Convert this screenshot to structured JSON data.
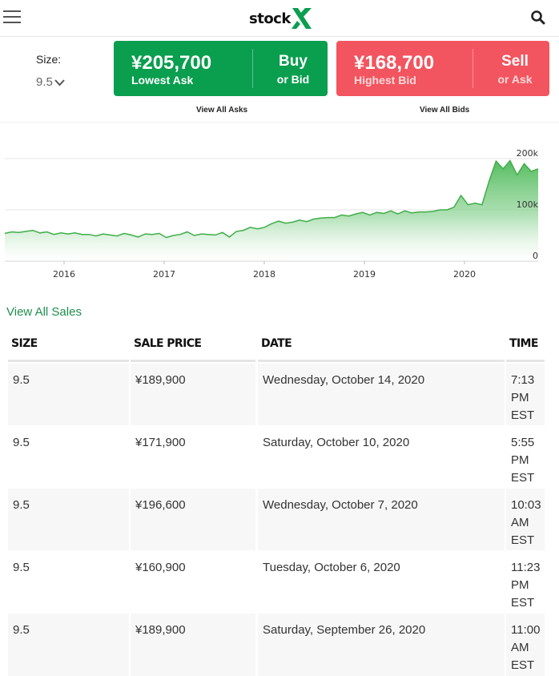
{
  "header": {
    "logo_text": "stock",
    "menu_icon": "hamburger-menu-icon",
    "search_icon": "search-icon",
    "brand_color": "#0a9e4f"
  },
  "size": {
    "label": "Size:",
    "value": "9.5"
  },
  "ask": {
    "price": "¥205,700",
    "sub": "Lowest Ask",
    "action": "Buy",
    "action_sub": "or Bid",
    "color": "#0a9e4f",
    "view_all": "View All Asks"
  },
  "bid": {
    "price": "¥168,700",
    "sub": "Highest Bid",
    "action": "Sell",
    "action_sub": "or Ask",
    "color": "#f2555f",
    "view_all": "View All Bids"
  },
  "chart_data": {
    "type": "area",
    "x_ticks": [
      "2016",
      "2017",
      "2018",
      "2019",
      "2020"
    ],
    "y_ticks": [
      "200k",
      "100k",
      "0"
    ],
    "ylim": [
      0,
      200000
    ],
    "grid": true,
    "series": [
      {
        "values": [
          54000,
          57000,
          56000,
          58000,
          60000,
          55000,
          57000,
          52000,
          55000,
          53000,
          55000,
          52000,
          52000,
          49000,
          53000,
          51000,
          49000,
          54000,
          51000,
          47000,
          53000,
          52000,
          54000,
          46000,
          50000,
          52000,
          57000,
          50000,
          53000,
          52000,
          51000,
          56000,
          47000,
          58000,
          60000,
          66000,
          63000,
          66000,
          73000,
          78000,
          74000,
          76000,
          80000,
          77000,
          82000,
          84000,
          85000,
          85000,
          90000,
          88000,
          92000,
          95000,
          90000,
          95000,
          93000,
          98000,
          92000,
          98000,
          94000,
          96000,
          96000,
          97000,
          100000,
          100000,
          105000,
          128000,
          110000,
          113000,
          110000,
          156000,
          195000,
          180000,
          196000,
          168000,
          190000,
          175000,
          180000
        ]
      }
    ],
    "color": "#3fae49"
  },
  "view_all_sales": "View All Sales",
  "table": {
    "headers": [
      "SIZE",
      "SALE PRICE",
      "DATE",
      "TIME"
    ],
    "rows": [
      [
        "9.5",
        "¥189,900",
        "Wednesday, October 14, 2020",
        "7:13 PM EST"
      ],
      [
        "9.5",
        "¥171,900",
        "Saturday, October 10, 2020",
        "5:55 PM EST"
      ],
      [
        "9.5",
        "¥196,600",
        "Wednesday, October 7, 2020",
        "10:03 AM EST"
      ],
      [
        "9.5",
        "¥160,900",
        "Tuesday, October 6, 2020",
        "11:23 PM EST"
      ],
      [
        "9.5",
        "¥189,900",
        "Saturday, September 26, 2020",
        "11:00 AM EST"
      ]
    ]
  }
}
